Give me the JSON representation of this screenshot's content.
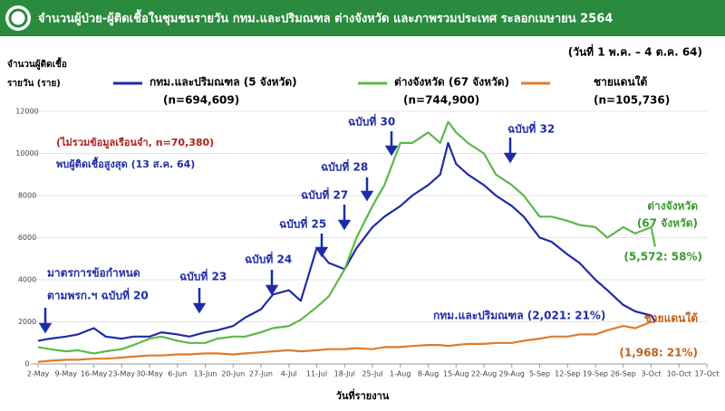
{
  "chart_data": {
    "type": "line",
    "title": "จำนวนผู้ป่วย-ผู้ติดเชื้อในชุมชนรายวัน กทม.และปริมณฑล ต่างจังหวัด และภาพรวมประเทศ ระลอกเมษายน 2564",
    "subtitle": "(วันที่ 1 พ.ค. – 4 ต.ค. 64)",
    "y_label": [
      "จำนวนผู้ติดเชื้อ",
      "รายวัน (ราย)"
    ],
    "x_label": "วันที่รายงาน",
    "x": [
      "2-May",
      "5-May",
      "9-May",
      "12-May",
      "16-May",
      "19-May",
      "23-May",
      "26-May",
      "30-May",
      "2-Jun",
      "6-Jun",
      "9-Jun",
      "13-Jun",
      "16-Jun",
      "20-Jun",
      "23-Jun",
      "27-Jun",
      "30-Jun",
      "4-Jul",
      "7-Jul",
      "11-Jul",
      "14-Jul",
      "18-Jul",
      "21-Jul",
      "25-Jul",
      "28-Jul",
      "1-Aug",
      "4-Aug",
      "8-Aug",
      "11-Aug",
      "13-Aug",
      "15-Aug",
      "18-Aug",
      "22-Aug",
      "25-Aug",
      "29-Aug",
      "1-Sep",
      "5-Sep",
      "8-Sep",
      "12-Sep",
      "15-Sep",
      "19-Sep",
      "22-Sep",
      "26-Sep",
      "29-Sep",
      "3-Oct",
      "4-Oct"
    ],
    "series": [
      {
        "name": "กทม.และปริมณฑล (5 จังหวัด)",
        "total_label": "(n=694,609)",
        "color": "#1f2ca8",
        "values": [
          1100,
          1200,
          1300,
          1400,
          1700,
          1300,
          1200,
          1300,
          1300,
          1500,
          1400,
          1300,
          1500,
          1600,
          1800,
          2200,
          2600,
          3300,
          3500,
          3000,
          5500,
          4800,
          4500,
          5500,
          6500,
          7000,
          7500,
          8000,
          8500,
          9000,
          10500,
          9500,
          9000,
          8500,
          8000,
          7500,
          7000,
          6000,
          5800,
          5200,
          4800,
          4000,
          3500,
          2800,
          2500,
          2300,
          2021
        ]
      },
      {
        "name": "ต่างจังหวัด (67 จังหวัด)",
        "total_label": "(n=744,900)",
        "color": "#5cb84a",
        "values": [
          800,
          700,
          600,
          650,
          500,
          600,
          700,
          900,
          1200,
          1300,
          1100,
          1000,
          1000,
          1200,
          1300,
          1300,
          1500,
          1700,
          1800,
          2100,
          2700,
          3200,
          4500,
          6000,
          7500,
          8500,
          10500,
          10500,
          11000,
          10500,
          11500,
          11000,
          10500,
          10000,
          9000,
          8500,
          8000,
          7000,
          7000,
          6800,
          6600,
          6500,
          6000,
          6500,
          6200,
          6500,
          5572
        ]
      },
      {
        "name": "ชายแดนใต้",
        "total_label": "(n=105,736)",
        "color": "#e07b2a",
        "values": [
          100,
          150,
          200,
          200,
          250,
          250,
          300,
          350,
          400,
          400,
          450,
          450,
          500,
          500,
          450,
          500,
          550,
          600,
          650,
          600,
          650,
          700,
          700,
          750,
          700,
          800,
          800,
          850,
          900,
          900,
          850,
          900,
          950,
          950,
          1000,
          1000,
          1100,
          1200,
          1300,
          1300,
          1400,
          1400,
          1600,
          1800,
          1700,
          2000,
          1968
        ]
      }
    ],
    "xlim": [
      "2-May",
      "17-Oct"
    ],
    "xticks": [
      "2-May",
      "9-May",
      "16-May",
      "23-May",
      "30-May",
      "6-Jun",
      "13-Jun",
      "20-Jun",
      "27-Jun",
      "4-Jul",
      "11-Jul",
      "18-Jul",
      "25-Jul",
      "1-Aug",
      "8-Aug",
      "15-Aug",
      "22-Aug",
      "29-Aug",
      "5-Sep",
      "12-Sep",
      "19-Sep",
      "26-Sep",
      "3-Oct",
      "10-Oct",
      "17-Oct"
    ],
    "ylim": [
      0,
      12000
    ],
    "yticks": [
      0,
      2000,
      4000,
      6000,
      8000,
      10000,
      12000
    ],
    "annotations": [
      {
        "text": "(ไม่รวมข้อมูลเรือนจำ, n=70,380)",
        "color": "#b02020"
      },
      {
        "text": "พบผู้ติดเชื้อสูงสุด (13 ส.ค. 64)",
        "color": "#1f2ca8"
      },
      {
        "text": "มาตรการข้อกำหนด",
        "color": "#1f2ca8"
      },
      {
        "text": "ตามพรก.ฯ ฉบับที่ 20",
        "color": "#1f2ca8"
      },
      {
        "text": "ฉบับที่ 23",
        "color": "#1f2ca8"
      },
      {
        "text": "ฉบับที่ 24",
        "color": "#1f2ca8"
      },
      {
        "text": "ฉบับที่ 25",
        "color": "#1f2ca8"
      },
      {
        "text": "ฉบับที่ 27",
        "color": "#1f2ca8"
      },
      {
        "text": "ฉบับที่ 28",
        "color": "#1f2ca8"
      },
      {
        "text": "ฉบับที่ 30",
        "color": "#1f2ca8"
      },
      {
        "text": "ฉบับที่ 32",
        "color": "#1f2ca8"
      },
      {
        "text": "ต่างจังหวัด",
        "color": "#3a9a30"
      },
      {
        "text": "(67 จังหวัด)",
        "color": "#3a9a30"
      },
      {
        "text": "(5,572: 58%)",
        "color": "#3a9a30"
      },
      {
        "text": "กทม.และปริมณฑล (2,021: 21%)",
        "color": "#1f2ca8"
      },
      {
        "text": "ชายแดนใต้",
        "color": "#c0601a"
      },
      {
        "text": "(1,968: 21%)",
        "color": "#c0601a"
      }
    ]
  }
}
